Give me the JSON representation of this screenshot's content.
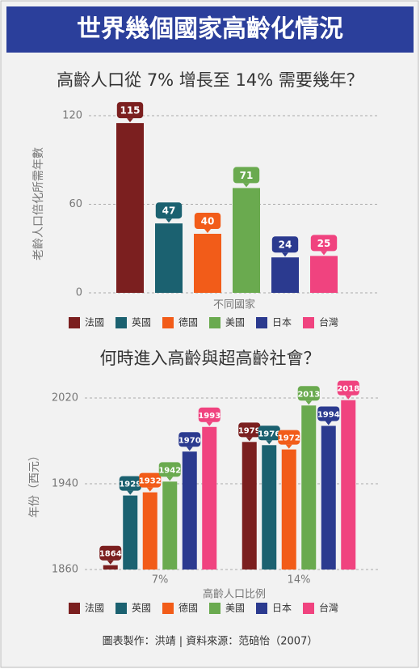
{
  "header": {
    "title": "世界幾個國家高齡化情況"
  },
  "chart_data": [
    {
      "type": "bar",
      "title": "高齡人口從 7% 增長至 14% 需要幾年？",
      "y_label": "老齡人口倍化所需年數",
      "x_label": "不同國家",
      "categories": [
        "法國",
        "英國",
        "德國",
        "美國",
        "日本",
        "台灣"
      ],
      "values": [
        115,
        47,
        40,
        71,
        24,
        25
      ],
      "colors": [
        "#7b1f1f",
        "#1b6170",
        "#f25c19",
        "#6aaa4f",
        "#2b3a8f",
        "#f0437f"
      ],
      "ylim": [
        0,
        120
      ],
      "yticks": [
        0,
        60,
        120
      ],
      "grid": true
    },
    {
      "type": "grouped-bar",
      "title": "何時進入高齡與超高齡社會？",
      "y_label": "年份（西元）",
      "x_label": "高齡人口比例",
      "categories": [
        "7%",
        "14%"
      ],
      "series": [
        {
          "name": "法國",
          "color": "#7b1f1f",
          "values": [
            1864,
            1979
          ]
        },
        {
          "name": "英國",
          "color": "#1b6170",
          "values": [
            1929,
            1976
          ]
        },
        {
          "name": "德國",
          "color": "#f25c19",
          "values": [
            1932,
            1972
          ]
        },
        {
          "name": "美國",
          "color": "#6aaa4f",
          "values": [
            1942,
            2013
          ]
        },
        {
          "name": "日本",
          "color": "#2b3a8f",
          "values": [
            1970,
            1994
          ]
        },
        {
          "name": "台灣",
          "color": "#f0437f",
          "values": [
            1993,
            2018
          ]
        }
      ],
      "ylim": [
        1860,
        2020
      ],
      "yticks": [
        1860,
        1940,
        2020
      ],
      "grid": true
    }
  ],
  "footer": {
    "source": "圖表製作：洪靖 | 資料來源：范碚怡（2007）"
  }
}
